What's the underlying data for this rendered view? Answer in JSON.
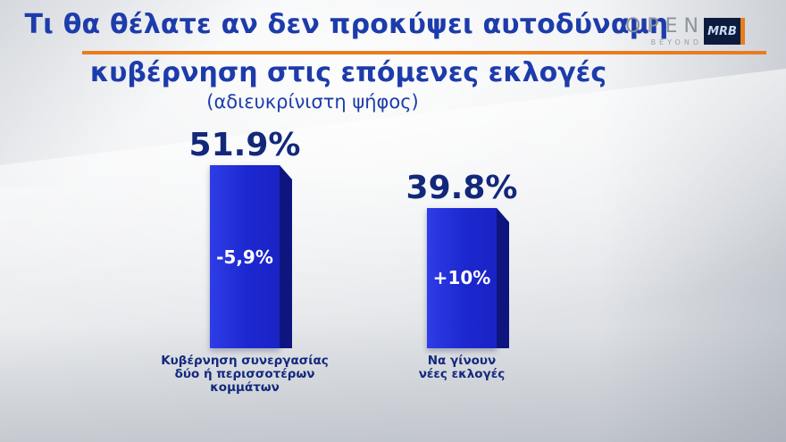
{
  "header": {
    "title_line1": "Τι θα θέλατε αν δεν προκύψει αυτοδύναμη",
    "title_line2": "κυβέρνηση στις επόμενες εκλογές",
    "subtitle": "(αδιευκρίνιστη ψήφος)"
  },
  "logos": {
    "open": "OPEN",
    "open_sub": "BEYOND",
    "mrb": "MRB"
  },
  "chart_data": {
    "type": "bar",
    "title": "Τι θα θέλατε αν δεν προκύψει αυτοδύναμη κυβέρνηση στις επόμενες εκλογές",
    "subtitle": "(αδιευκρίνιστη ψήφος)",
    "categories": [
      "Κυβέρνηση συνεργασίας δύο ή περισσοτέρων κομμάτων",
      "Να γίνουν νέες εκλογές"
    ],
    "values": [
      51.9,
      39.8
    ],
    "value_labels": [
      "51.9%",
      "39.8%"
    ],
    "change_labels": [
      "-5,9%",
      "+10%"
    ],
    "ylim": [
      0,
      55
    ],
    "grid": false,
    "legend": "none",
    "bar_color": "#1c27cf",
    "bar_side_color": "#0e157f"
  },
  "bars": [
    {
      "value_label": "51.9%",
      "change_label": "-5,9%",
      "label_lines": [
        "Κυβέρνηση συνεργασίας",
        "δύο ή περισσοτέρων",
        "κομμάτων"
      ]
    },
    {
      "value_label": "39.8%",
      "change_label": "+10%",
      "label_lines": [
        "Να γίνουν",
        "νέες εκλογές"
      ]
    }
  ],
  "colors": {
    "title_blue": "#1d3cab",
    "value_navy": "#12287a",
    "accent_orange": "#e87c1e",
    "bar_front": "#1c27cf",
    "bar_side": "#0e157f",
    "label_blue": "#12297d"
  }
}
